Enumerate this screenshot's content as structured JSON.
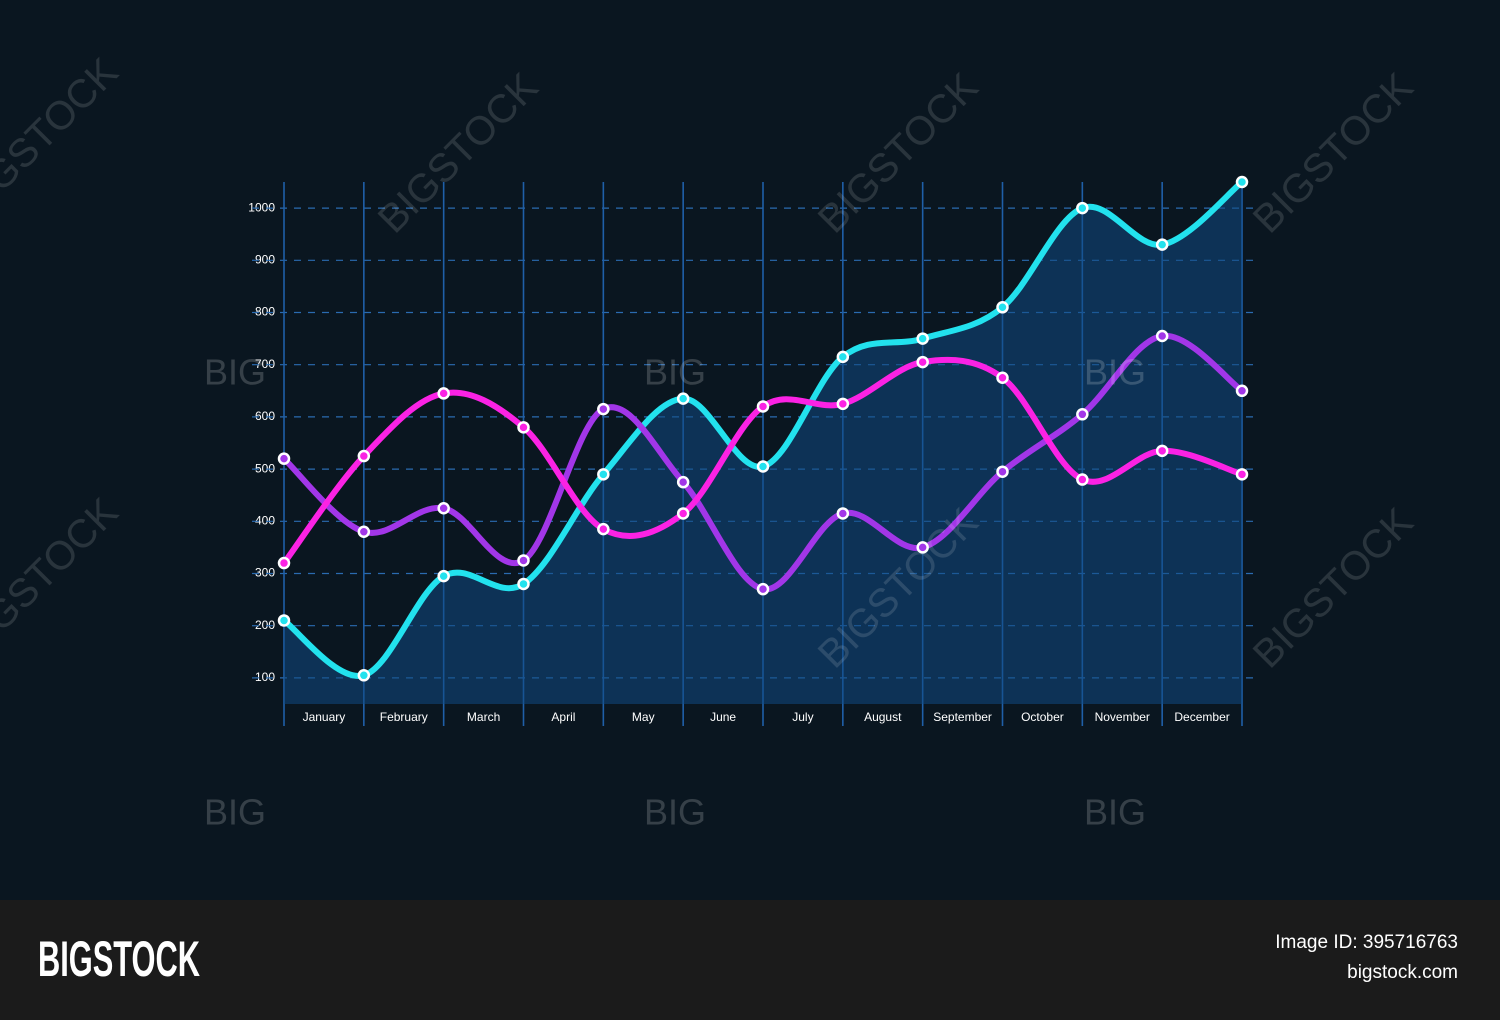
{
  "chart_data": {
    "type": "line",
    "x": [
      0,
      1,
      2,
      3,
      4,
      5,
      6,
      7,
      8,
      9,
      10,
      11,
      12
    ],
    "xlim": [
      0,
      12
    ],
    "xticks": [
      {
        "value": 0.5,
        "label": "January"
      },
      {
        "value": 1.5,
        "label": "February"
      },
      {
        "value": 2.5,
        "label": "March"
      },
      {
        "value": 3.5,
        "label": "April"
      },
      {
        "value": 4.5,
        "label": "May"
      },
      {
        "value": 5.5,
        "label": "June"
      },
      {
        "value": 6.5,
        "label": "July"
      },
      {
        "value": 7.5,
        "label": "August"
      },
      {
        "value": 8.5,
        "label": "September"
      },
      {
        "value": 9.5,
        "label": "October"
      },
      {
        "value": 10.5,
        "label": "November"
      },
      {
        "value": 11.5,
        "label": "December"
      }
    ],
    "ylim": [
      50,
      1050
    ],
    "yticks": [
      100,
      200,
      300,
      400,
      500,
      600,
      700,
      800,
      900,
      1000
    ],
    "grid": true,
    "series": [
      {
        "color": "#22e2ee",
        "area": true,
        "values": [
          210,
          105,
          295,
          280,
          490,
          635,
          505,
          715,
          750,
          810,
          1000,
          930,
          1050
        ]
      },
      {
        "color": "#a236e8",
        "values": [
          520,
          380,
          425,
          325,
          615,
          475,
          270,
          415,
          350,
          495,
          605,
          755,
          650
        ]
      },
      {
        "color": "#fb22e4",
        "values": [
          320,
          525,
          645,
          580,
          385,
          415,
          620,
          625,
          705,
          675,
          480,
          535,
          490
        ]
      }
    ]
  },
  "watermark": {
    "large": "BIGSTOCK",
    "small": "BIG"
  },
  "footer": {
    "logo": "BIGSTOCK",
    "image_id": "Image ID: 395716763",
    "site": "bigstock.com"
  }
}
